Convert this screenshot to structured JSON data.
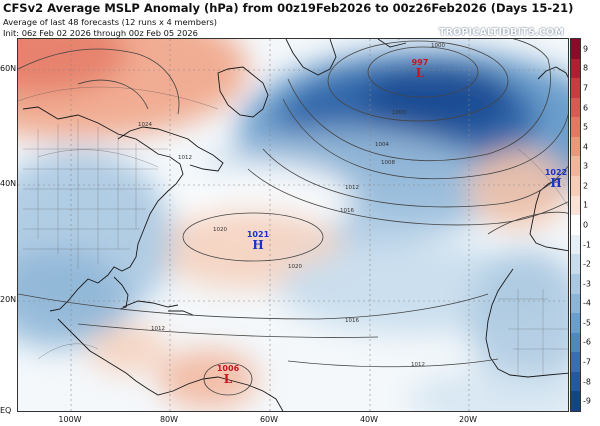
{
  "title": "CFSv2 Average MSLP Anomaly (hPa) from 00z19Feb2026 to 00z26Feb2026 (Days 15-21)",
  "subtitle1": "Average of last 48 forecasts (12 runs x 4 members)",
  "subtitle2": "Init: 06z Feb 02 2026 through 00z Feb 05 2026",
  "brand": "TROPICALTIDBITS.COM",
  "lat_labels": [
    "60N",
    "40N",
    "20N",
    "EQ"
  ],
  "lon_labels": [
    "100W",
    "80W",
    "60W",
    "40W",
    "20W"
  ],
  "colorbar": {
    "ticks": [
      "9",
      "8",
      "7",
      "6",
      "5",
      "4",
      "3",
      "2",
      "1",
      "0",
      "-1",
      "-2",
      "-3",
      "-4",
      "-5",
      "-6",
      "-7",
      "-8",
      "-9"
    ],
    "colors": [
      "#8b0a28",
      "#b01e32",
      "#c83c41",
      "#d85a50",
      "#e47864",
      "#ec967c",
      "#f2b49a",
      "#f6cdb7",
      "#f9e2d5",
      "#ffffff",
      "#e6eef6",
      "#c8dcec",
      "#aac8e1",
      "#8bb4d6",
      "#6b9ecb",
      "#4f88bf",
      "#3570b2",
      "#215aa0",
      "#144488"
    ]
  },
  "pressure_centers": [
    {
      "type": "low",
      "value": "997",
      "symbol": "L"
    },
    {
      "type": "high",
      "value": "1021",
      "symbol": "H"
    },
    {
      "type": "high",
      "value": "1022",
      "symbol": "H"
    },
    {
      "type": "low",
      "value": "1006",
      "symbol": "L"
    }
  ],
  "isobar_labels": [
    "1000",
    "1000",
    "1004",
    "1008",
    "1012",
    "1016",
    "1020",
    "1020",
    "1024",
    "1016",
    "1012",
    "1012",
    "1012"
  ]
}
